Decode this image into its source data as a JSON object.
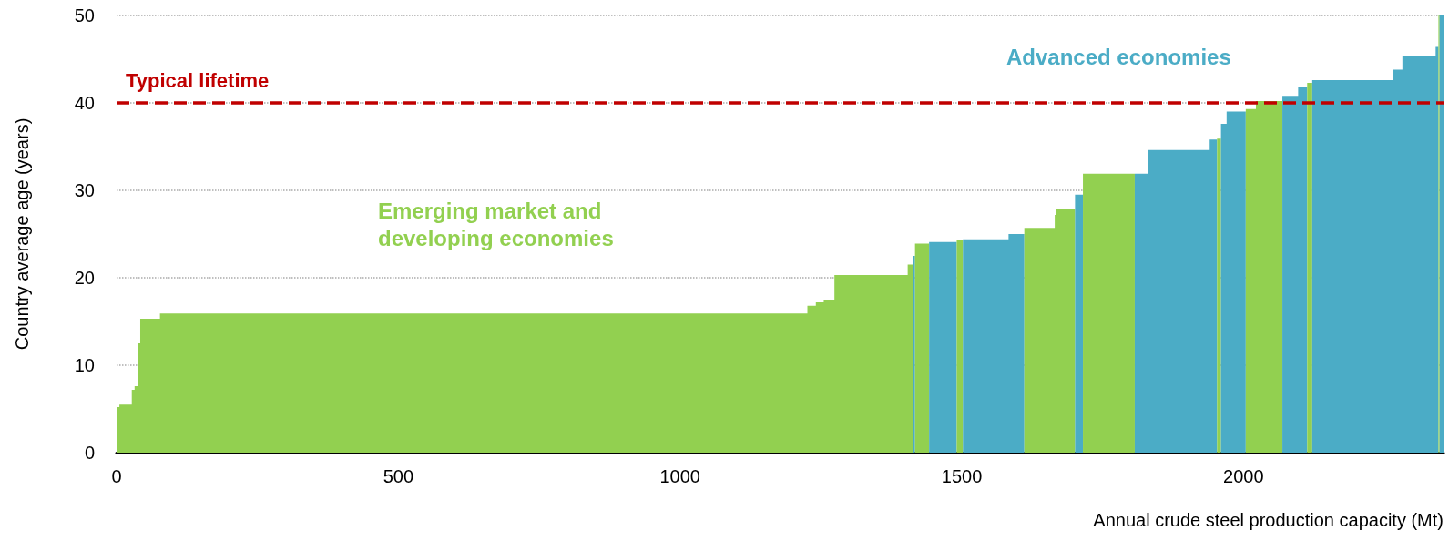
{
  "chart_data": {
    "type": "area",
    "xlabel": "Annual crude steel production capacity (Mt)",
    "ylabel": "Country average age (years)",
    "xlim": [
      0,
      2355
    ],
    "xticks": [
      0,
      500,
      1000,
      1500,
      2000
    ],
    "ylim": [
      0,
      50
    ],
    "yticks": [
      0,
      10,
      20,
      30,
      40,
      50
    ],
    "grid": "y",
    "marker": "none",
    "series": [
      {
        "name": "Emerging market and developing economies",
        "color": "#92d050",
        "x": [
          0,
          5,
          27,
          32,
          38,
          42,
          77,
          1226,
          1241,
          1255,
          1274,
          1404,
          1413
        ],
        "values": [
          5.2,
          5.5,
          7.2,
          7.6,
          12.5,
          15.3,
          15.9,
          16.8,
          17.2,
          17.5,
          20.3,
          21.5,
          21.5
        ]
      },
      {
        "color": "#4bacc6",
        "x": [
          1413,
          1417
        ],
        "values": [
          22.5,
          22.5
        ]
      },
      {
        "color": "#92d050",
        "x": [
          1417,
          1442
        ],
        "values": [
          23.9,
          23.9
        ]
      },
      {
        "color": "#4bacc6",
        "x": [
          1442,
          1491
        ],
        "values": [
          24.1,
          24.1
        ]
      },
      {
        "color": "#92d050",
        "x": [
          1491,
          1502
        ],
        "values": [
          24.3,
          24.3
        ]
      },
      {
        "color": "#4bacc6",
        "x": [
          1502,
          1583,
          1611
        ],
        "values": [
          24.4,
          25.0,
          25.0
        ]
      },
      {
        "color": "#92d050",
        "x": [
          1611,
          1665,
          1668,
          1701
        ],
        "values": [
          25.7,
          27.2,
          27.8,
          27.8
        ]
      },
      {
        "color": "#4bacc6",
        "x": [
          1701,
          1715
        ],
        "values": [
          29.5,
          29.5
        ]
      },
      {
        "color": "#92d050",
        "x": [
          1715,
          1807
        ],
        "values": [
          31.9,
          31.9
        ]
      },
      {
        "color": "#4bacc6",
        "x": [
          1807,
          1830,
          1940,
          1953
        ],
        "values": [
          31.9,
          34.6,
          35.8,
          35.8
        ]
      },
      {
        "color": "#92d050",
        "x": [
          1953,
          1960
        ],
        "values": [
          35.9,
          35.9
        ]
      },
      {
        "color": "#4bacc6",
        "x": [
          1960,
          1970,
          2004
        ],
        "values": [
          37.6,
          39.0,
          39.0
        ]
      },
      {
        "color": "#92d050",
        "x": [
          2004,
          2022,
          2069
        ],
        "values": [
          39.3,
          40.2,
          40.2
        ]
      },
      {
        "color": "#4bacc6",
        "x": [
          2069,
          2097,
          2113
        ],
        "values": [
          40.8,
          41.8,
          41.8
        ]
      },
      {
        "color": "#92d050",
        "x": [
          2113,
          2122
        ],
        "values": [
          42.3,
          42.3
        ]
      },
      {
        "name": "Advanced economies",
        "color": "#4bacc6",
        "x": [
          2122,
          2266,
          2282,
          2341,
          2346
        ],
        "values": [
          42.6,
          43.8,
          45.3,
          46.4,
          46.4
        ]
      },
      {
        "color": "#92d050",
        "x": [
          2346,
          2348
        ],
        "values": [
          50,
          50
        ]
      },
      {
        "color": "#4bacc6",
        "x": [
          2348,
          2355
        ],
        "values": [
          50,
          50
        ]
      }
    ],
    "ref_lines": [
      {
        "axis": "y",
        "value": 40,
        "label": "Typical lifetime",
        "color": "#c00000",
        "line_style": "dashed"
      }
    ]
  }
}
